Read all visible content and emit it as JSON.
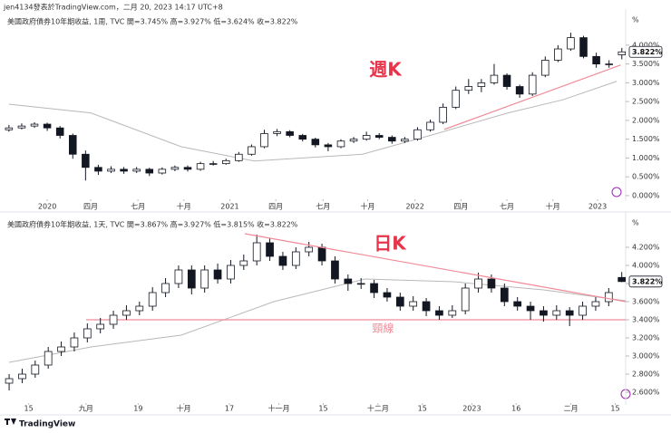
{
  "header": "jen4134發表於TradingView.com，二月 20, 2023 14:17 UTC+8",
  "footer": "TradingView",
  "chart_data": [
    {
      "type": "candlestick",
      "legend": "美國政府債券10年期收益, 1周, TVC  開=3.745%  高=3.927%  低=3.624%  收=3.822%",
      "annotation": "週K",
      "unit": "%",
      "xlim": [
        -0.7,
        48.3
      ],
      "ylim": [
        -0.05,
        4.84
      ],
      "xticks": [
        {
          "value": 3,
          "label": "2020"
        },
        {
          "value": 6.4,
          "label": "四月"
        },
        {
          "value": 10.1,
          "label": "七月"
        },
        {
          "value": 13.7,
          "label": "十月"
        },
        {
          "value": 17.3,
          "label": "2021"
        },
        {
          "value": 20.9,
          "label": "四月"
        },
        {
          "value": 24.6,
          "label": "七月"
        },
        {
          "value": 28.1,
          "label": "十月"
        },
        {
          "value": 31.8,
          "label": "2022"
        },
        {
          "value": 35.4,
          "label": "四月"
        },
        {
          "value": 39,
          "label": "七月"
        },
        {
          "value": 42.6,
          "label": "十月"
        },
        {
          "value": 46.1,
          "label": "2023"
        }
      ],
      "yticks": [
        {
          "value": 0,
          "label": "0.000%"
        },
        {
          "value": 0.5,
          "label": "0.500%"
        },
        {
          "value": 1,
          "label": "1.000%"
        },
        {
          "value": 1.5,
          "label": "1.500%"
        },
        {
          "value": 2,
          "label": "2.000%"
        },
        {
          "value": 2.5,
          "label": "2.500%"
        },
        {
          "value": 3,
          "label": "3.000%"
        },
        {
          "value": 3.5,
          "label": "3.500%"
        },
        {
          "value": 4,
          "label": "4.000%"
        }
      ],
      "last_price": {
        "value": 3.822,
        "label": "3.822%"
      },
      "ohlc": [
        [
          1.75,
          1.88,
          1.7,
          1.8
        ],
        [
          1.8,
          1.92,
          1.76,
          1.85
        ],
        [
          1.85,
          1.95,
          1.8,
          1.9
        ],
        [
          1.9,
          1.94,
          1.72,
          1.8
        ],
        [
          1.8,
          1.85,
          1.52,
          1.6
        ],
        [
          1.6,
          1.65,
          0.98,
          1.1
        ],
        [
          1.1,
          1.2,
          0.4,
          0.75
        ],
        [
          0.75,
          0.82,
          0.55,
          0.65
        ],
        [
          0.65,
          0.78,
          0.6,
          0.7
        ],
        [
          0.7,
          0.76,
          0.58,
          0.65
        ],
        [
          0.65,
          0.76,
          0.6,
          0.7
        ],
        [
          0.7,
          0.74,
          0.52,
          0.6
        ],
        [
          0.6,
          0.75,
          0.56,
          0.7
        ],
        [
          0.7,
          0.8,
          0.65,
          0.75
        ],
        [
          0.75,
          0.8,
          0.64,
          0.7
        ],
        [
          0.7,
          0.9,
          0.66,
          0.85
        ],
        [
          0.85,
          0.92,
          0.8,
          0.85
        ],
        [
          0.85,
          0.98,
          0.82,
          0.93
        ],
        [
          0.93,
          1.16,
          0.9,
          1.1
        ],
        [
          1.1,
          1.36,
          1.06,
          1.3
        ],
        [
          1.3,
          1.75,
          1.26,
          1.65
        ],
        [
          1.65,
          1.77,
          1.58,
          1.7
        ],
        [
          1.7,
          1.74,
          1.55,
          1.6
        ],
        [
          1.6,
          1.64,
          1.44,
          1.5
        ],
        [
          1.5,
          1.54,
          1.28,
          1.35
        ],
        [
          1.35,
          1.4,
          1.18,
          1.3
        ],
        [
          1.3,
          1.5,
          1.26,
          1.45
        ],
        [
          1.45,
          1.56,
          1.4,
          1.5
        ],
        [
          1.5,
          1.7,
          1.46,
          1.6
        ],
        [
          1.6,
          1.66,
          1.5,
          1.55
        ],
        [
          1.55,
          1.6,
          1.38,
          1.45
        ],
        [
          1.45,
          1.56,
          1.4,
          1.5
        ],
        [
          1.5,
          1.82,
          1.46,
          1.75
        ],
        [
          1.75,
          2.02,
          1.7,
          1.95
        ],
        [
          1.95,
          2.45,
          1.9,
          2.35
        ],
        [
          2.35,
          2.9,
          2.3,
          2.8
        ],
        [
          2.8,
          3.1,
          2.7,
          2.9
        ],
        [
          2.9,
          3.1,
          2.75,
          3.0
        ],
        [
          3.0,
          3.5,
          2.95,
          3.2
        ],
        [
          3.2,
          3.25,
          2.82,
          2.9
        ],
        [
          2.9,
          2.95,
          2.6,
          2.7
        ],
        [
          2.7,
          3.28,
          2.65,
          3.2
        ],
        [
          3.2,
          3.7,
          3.15,
          3.6
        ],
        [
          3.6,
          4.0,
          3.55,
          3.9
        ],
        [
          3.9,
          4.33,
          3.85,
          4.2
        ],
        [
          4.2,
          4.25,
          3.65,
          3.7
        ],
        [
          3.7,
          3.8,
          3.4,
          3.5
        ],
        [
          3.5,
          3.6,
          3.4,
          3.5
        ],
        [
          3.745,
          3.927,
          3.624,
          3.822
        ]
      ],
      "ma": {
        "color": "#b8b8b8",
        "x": [
          0,
          6.4,
          13.5,
          19.2,
          27.7,
          33.4,
          39.1,
          43.4,
          47.6
        ],
        "values": [
          2.43,
          2.2,
          1.3,
          0.92,
          1.1,
          1.64,
          2.2,
          2.55,
          3.04
        ]
      },
      "trendlines": [
        {
          "color": "#f08a99",
          "x": [
            34.1,
            47.9
          ],
          "y": [
            1.76,
            3.47
          ]
        }
      ]
    },
    {
      "type": "candlestick",
      "legend": "美國政府債券10年期收益, 1天, TVC  開=3.867%  高=3.927%  低=3.815%  收=3.822%",
      "annotation": "日K",
      "unit": "%",
      "xlim": [
        -0.7,
        47.3
      ],
      "ylim": [
        2.5,
        4.55
      ],
      "xticks": [
        {
          "value": 1.5,
          "label": "15"
        },
        {
          "value": 5.9,
          "label": "九月"
        },
        {
          "value": 9.9,
          "label": "19"
        },
        {
          "value": 13.4,
          "label": "十月"
        },
        {
          "value": 16.9,
          "label": "17"
        },
        {
          "value": 20.7,
          "label": "十一月"
        },
        {
          "value": 24.1,
          "label": "15"
        },
        {
          "value": 28.3,
          "label": "十二月"
        },
        {
          "value": 31.7,
          "label": "15"
        },
        {
          "value": 35.5,
          "label": "2023"
        },
        {
          "value": 38.9,
          "label": "16"
        },
        {
          "value": 43.1,
          "label": "二月"
        },
        {
          "value": 46.5,
          "label": "15"
        }
      ],
      "yticks": [
        {
          "value": 2.6,
          "label": "2.600%"
        },
        {
          "value": 2.8,
          "label": "2.800%"
        },
        {
          "value": 3.0,
          "label": "3.000%"
        },
        {
          "value": 3.2,
          "label": "3.200%"
        },
        {
          "value": 3.4,
          "label": "3.400%"
        },
        {
          "value": 3.6,
          "label": "3.600%"
        },
        {
          "value": 3.8,
          "label": "3.800%"
        },
        {
          "value": 4.0,
          "label": "4.000%"
        },
        {
          "value": 4.2,
          "label": "4.200%"
        }
      ],
      "last_price": {
        "value": 3.822,
        "label": "3.822%"
      },
      "ohlc": [
        [
          2.7,
          2.8,
          2.62,
          2.75
        ],
        [
          2.75,
          2.86,
          2.7,
          2.8
        ],
        [
          2.8,
          2.95,
          2.76,
          2.9
        ],
        [
          2.9,
          3.1,
          2.86,
          3.05
        ],
        [
          3.05,
          3.16,
          3.0,
          3.1
        ],
        [
          3.1,
          3.26,
          3.05,
          3.2
        ],
        [
          3.2,
          3.36,
          3.15,
          3.3
        ],
        [
          3.3,
          3.42,
          3.25,
          3.35
        ],
        [
          3.35,
          3.5,
          3.3,
          3.45
        ],
        [
          3.45,
          3.56,
          3.4,
          3.5
        ],
        [
          3.5,
          3.6,
          3.45,
          3.55
        ],
        [
          3.55,
          3.76,
          3.5,
          3.7
        ],
        [
          3.7,
          3.86,
          3.65,
          3.8
        ],
        [
          3.8,
          4.0,
          3.75,
          3.95
        ],
        [
          3.95,
          4.0,
          3.68,
          3.75
        ],
        [
          3.75,
          4.0,
          3.7,
          3.95
        ],
        [
          3.95,
          4.02,
          3.8,
          3.85
        ],
        [
          3.85,
          4.06,
          3.8,
          4.0
        ],
        [
          4.0,
          4.12,
          3.95,
          4.05
        ],
        [
          4.05,
          4.34,
          4.0,
          4.25
        ],
        [
          4.25,
          4.3,
          4.05,
          4.1
        ],
        [
          4.1,
          4.15,
          3.95,
          4.0
        ],
        [
          4.0,
          4.2,
          3.96,
          4.15
        ],
        [
          4.15,
          4.26,
          4.1,
          4.2
        ],
        [
          4.2,
          4.24,
          4.0,
          4.05
        ],
        [
          4.05,
          4.1,
          3.8,
          3.85
        ],
        [
          3.85,
          3.9,
          3.72,
          3.8
        ],
        [
          3.8,
          3.86,
          3.74,
          3.8
        ],
        [
          3.8,
          3.84,
          3.64,
          3.7
        ],
        [
          3.7,
          3.75,
          3.6,
          3.65
        ],
        [
          3.65,
          3.7,
          3.5,
          3.55
        ],
        [
          3.55,
          3.66,
          3.5,
          3.6
        ],
        [
          3.6,
          3.64,
          3.44,
          3.5
        ],
        [
          3.5,
          3.55,
          3.4,
          3.45
        ],
        [
          3.45,
          3.56,
          3.42,
          3.5
        ],
        [
          3.5,
          3.8,
          3.46,
          3.75
        ],
        [
          3.75,
          3.92,
          3.7,
          3.85
        ],
        [
          3.85,
          3.9,
          3.7,
          3.75
        ],
        [
          3.75,
          3.8,
          3.55,
          3.6
        ],
        [
          3.6,
          3.65,
          3.5,
          3.55
        ],
        [
          3.55,
          3.6,
          3.4,
          3.5
        ],
        [
          3.5,
          3.55,
          3.38,
          3.45
        ],
        [
          3.45,
          3.56,
          3.4,
          3.5
        ],
        [
          3.5,
          3.54,
          3.33,
          3.45
        ],
        [
          3.45,
          3.6,
          3.4,
          3.55
        ],
        [
          3.55,
          3.65,
          3.5,
          3.6
        ],
        [
          3.6,
          3.75,
          3.55,
          3.7
        ],
        [
          3.867,
          3.927,
          3.815,
          3.822
        ]
      ],
      "ma": {
        "color": "#b8b8b8",
        "x": [
          0,
          6.3,
          13.2,
          20.3,
          27.3,
          34.1,
          41,
          47.3
        ],
        "values": [
          2.93,
          3.1,
          3.23,
          3.6,
          3.85,
          3.82,
          3.73,
          3.61
        ]
      },
      "trendlines": [
        {
          "color": "#f08a99",
          "x": [
            18.08,
            47.3
          ],
          "y": [
            4.35,
            3.6
          ]
        }
      ],
      "neckline": {
        "value": 3.4,
        "x": 5.9,
        "label": "頸線",
        "color": "#f08a99"
      }
    }
  ]
}
